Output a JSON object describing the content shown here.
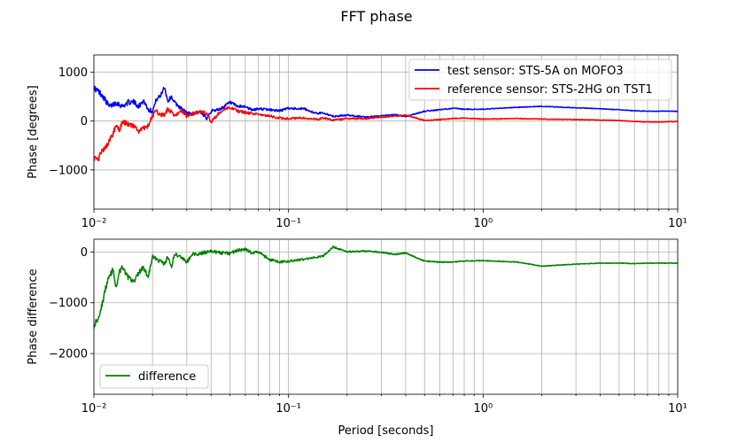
{
  "figure": {
    "title": "FFT phase"
  },
  "chart_data": [
    {
      "type": "line",
      "xscale": "log",
      "xlim": [
        0.01,
        10
      ],
      "ylim": [
        -1800,
        1350
      ],
      "yticks": [
        -1000,
        0,
        1000
      ],
      "ytick_labels": [
        "−1000",
        "0",
        "1000"
      ],
      "xtick_labels": [
        "10⁻²",
        "10⁻¹",
        "10⁰",
        "10¹"
      ],
      "xlabel": "",
      "ylabel": "Phase [degrees]",
      "grid": true,
      "legend": "top-right",
      "series": [
        {
          "name": "test sensor: STS-5A on MOFO3",
          "color": "#0000ff",
          "x": [
            0.01,
            0.011,
            0.012,
            0.013,
            0.014,
            0.015,
            0.016,
            0.017,
            0.018,
            0.019,
            0.02,
            0.021,
            0.022,
            0.023,
            0.024,
            0.025,
            0.026,
            0.028,
            0.03,
            0.032,
            0.035,
            0.038,
            0.04,
            0.045,
            0.05,
            0.055,
            0.06,
            0.065,
            0.07,
            0.08,
            0.09,
            0.1,
            0.12,
            0.14,
            0.15,
            0.17,
            0.2,
            0.25,
            0.3,
            0.35,
            0.4,
            0.5,
            0.6,
            0.7,
            0.8,
            1,
            1.5,
            2,
            3,
            4,
            5,
            6,
            7,
            8,
            10
          ],
          "y": [
            680,
            540,
            290,
            380,
            300,
            380,
            390,
            300,
            420,
            240,
            200,
            450,
            510,
            710,
            400,
            500,
            380,
            260,
            160,
            150,
            180,
            60,
            200,
            250,
            380,
            290,
            300,
            220,
            250,
            230,
            210,
            260,
            250,
            150,
            170,
            90,
            120,
            80,
            100,
            130,
            90,
            200,
            230,
            260,
            240,
            240,
            280,
            300,
            270,
            250,
            230,
            210,
            200,
            200,
            200
          ]
        },
        {
          "name": "reference sensor: STS-2HG on TST1",
          "color": "#ff0000",
          "x": [
            0.01,
            0.0105,
            0.011,
            0.0115,
            0.012,
            0.0125,
            0.013,
            0.0135,
            0.014,
            0.015,
            0.016,
            0.017,
            0.018,
            0.019,
            0.02,
            0.021,
            0.022,
            0.023,
            0.024,
            0.025,
            0.026,
            0.028,
            0.03,
            0.032,
            0.035,
            0.038,
            0.04,
            0.045,
            0.05,
            0.055,
            0.06,
            0.065,
            0.07,
            0.08,
            0.09,
            0.1,
            0.12,
            0.14,
            0.15,
            0.17,
            0.2,
            0.25,
            0.3,
            0.35,
            0.4,
            0.5,
            0.6,
            0.7,
            0.8,
            1,
            1.5,
            2,
            3,
            4,
            5,
            6,
            7,
            8,
            10
          ],
          "y": [
            -750,
            -800,
            -600,
            -550,
            -400,
            -260,
            -100,
            -200,
            -20,
            -60,
            -120,
            -200,
            -150,
            -100,
            100,
            200,
            130,
            120,
            250,
            180,
            100,
            220,
            100,
            150,
            200,
            160,
            -20,
            200,
            280,
            200,
            170,
            150,
            140,
            100,
            60,
            50,
            60,
            30,
            60,
            20,
            50,
            50,
            80,
            100,
            120,
            10,
            30,
            50,
            60,
            40,
            50,
            40,
            30,
            20,
            10,
            -10,
            -20,
            -20,
            -10
          ]
        }
      ]
    },
    {
      "type": "line",
      "xscale": "log",
      "xlim": [
        0.01,
        10
      ],
      "ylim": [
        -2800,
        250
      ],
      "yticks": [
        -2000,
        -1000,
        0
      ],
      "ytick_labels": [
        "−2000",
        "−1000",
        "0"
      ],
      "xtick_labels": [
        "10⁻²",
        "10⁻¹",
        "10⁰",
        "10¹"
      ],
      "xlabel": "Period [seconds]",
      "ylabel": "Phase difference",
      "grid": true,
      "legend": "bottom-left",
      "series": [
        {
          "name": "difference",
          "color": "#008000",
          "x": [
            0.01,
            0.0105,
            0.011,
            0.0115,
            0.012,
            0.0125,
            0.013,
            0.0135,
            0.014,
            0.015,
            0.016,
            0.017,
            0.018,
            0.019,
            0.02,
            0.021,
            0.022,
            0.023,
            0.024,
            0.025,
            0.026,
            0.028,
            0.03,
            0.032,
            0.035,
            0.038,
            0.04,
            0.045,
            0.05,
            0.055,
            0.06,
            0.065,
            0.07,
            0.08,
            0.09,
            0.1,
            0.12,
            0.14,
            0.15,
            0.17,
            0.2,
            0.25,
            0.3,
            0.35,
            0.4,
            0.5,
            0.6,
            0.7,
            0.8,
            1,
            1.5,
            2,
            3,
            4,
            5,
            6,
            7,
            8,
            10
          ],
          "y": [
            -1450,
            -1300,
            -1050,
            -700,
            -500,
            -350,
            -700,
            -400,
            -300,
            -500,
            -600,
            -400,
            -300,
            -500,
            -100,
            -150,
            -180,
            -250,
            -100,
            -300,
            -50,
            -100,
            -200,
            -50,
            -30,
            0,
            20,
            -20,
            -30,
            30,
            50,
            -20,
            0,
            -150,
            -200,
            -180,
            -150,
            -100,
            -80,
            100,
            0,
            20,
            -10,
            -50,
            -20,
            -180,
            -200,
            -200,
            -180,
            -170,
            -200,
            -280,
            -240,
            -220,
            -220,
            -230,
            -220,
            -220,
            -220
          ]
        }
      ]
    }
  ]
}
